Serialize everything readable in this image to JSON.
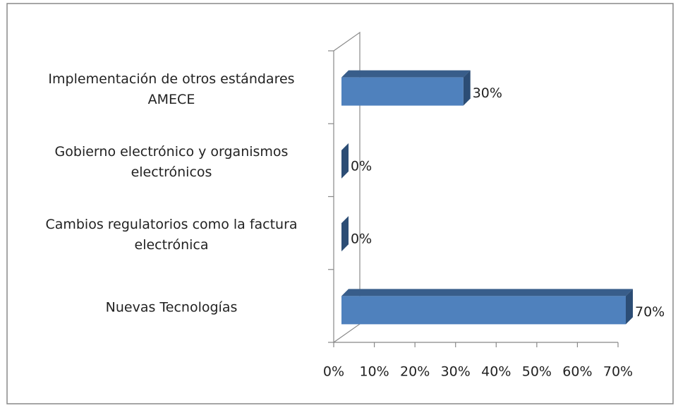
{
  "chart_data": {
    "type": "bar3d",
    "orientation": "horizontal",
    "categories": [
      "Implementación de otros estándares AMECE",
      "Gobierno electrónico y organismos electrónicos",
      "Cambios regulatorios como la factura electrónica",
      "Nuevas Tecnologías"
    ],
    "values": [
      30,
      0,
      0,
      70
    ],
    "value_labels": [
      "30%",
      "0%",
      "0%",
      "70%"
    ],
    "color": "#4f81bd",
    "xlim": [
      0,
      70
    ],
    "xticks": [
      {
        "value": 0,
        "label": "0%"
      },
      {
        "value": 10,
        "label": "10%"
      },
      {
        "value": 20,
        "label": "20%"
      },
      {
        "value": 30,
        "label": "30%"
      },
      {
        "value": 40,
        "label": "40%"
      },
      {
        "value": 50,
        "label": "50%"
      },
      {
        "value": 60,
        "label": "60%"
      },
      {
        "value": 70,
        "label": "70%"
      }
    ]
  }
}
